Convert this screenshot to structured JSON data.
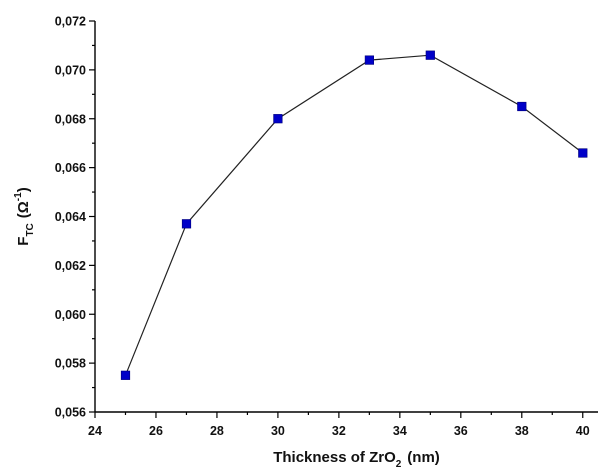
{
  "chart_data": {
    "type": "line",
    "title": "",
    "xlabel": {
      "main": "Thickness of ZrO",
      "sub": "2",
      "unit": "(nm)"
    },
    "ylabel": {
      "main": "F",
      "sub": "TC",
      "unit_open": "(Ω",
      "unit_sup": "-1",
      "unit_close": ")"
    },
    "xlim": [
      24,
      40.5
    ],
    "ylim": [
      0.056,
      0.072
    ],
    "x_ticks": [
      24,
      26,
      28,
      30,
      32,
      34,
      36,
      38,
      40
    ],
    "y_ticks": [
      0.056,
      0.058,
      0.06,
      0.062,
      0.064,
      0.066,
      0.068,
      0.07,
      0.072
    ],
    "y_tick_labels": [
      "0,056",
      "0,058",
      "0,060",
      "0,062",
      "0,064",
      "0,066",
      "0,068",
      "0,070",
      "0,072"
    ],
    "grid": false,
    "legend": "none",
    "series": [
      {
        "x": [
          25,
          27,
          30,
          33,
          35,
          38,
          40
        ],
        "y": [
          0.0575,
          0.0637,
          0.068,
          0.0704,
          0.0706,
          0.0685,
          0.0666
        ],
        "marker": "square",
        "marker_color": "#0000c8",
        "line_color": "#222222"
      }
    ]
  }
}
